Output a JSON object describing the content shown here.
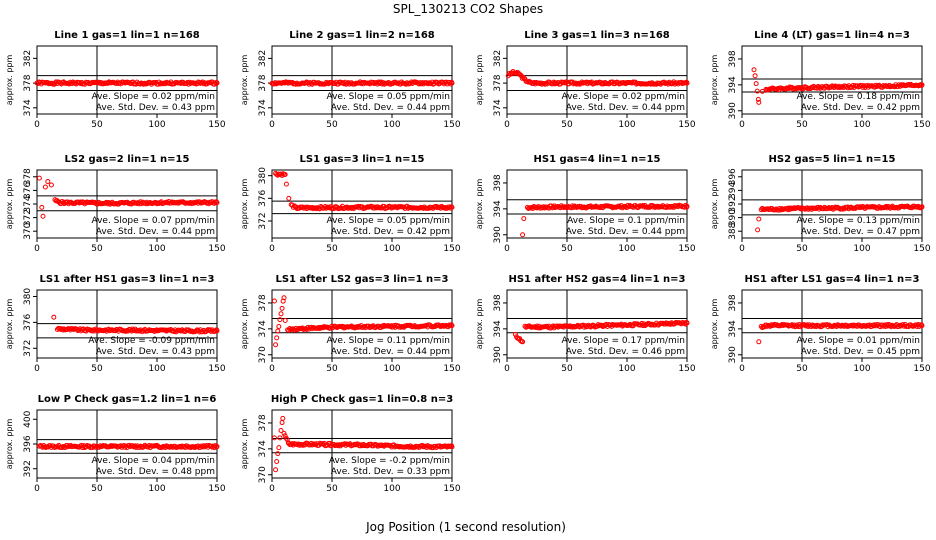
{
  "figure": {
    "title": "SPL_130213  CO2 Shapes",
    "xlabel": "Jog Position (1 second resolution)"
  },
  "chart_data": [
    {
      "type": "scatter",
      "title": "Line 1 gas=1 lin=1 n=168",
      "ylabel": "approx. ppm",
      "xlim": [
        0,
        150
      ],
      "ylim": [
        373,
        384
      ],
      "yticks": [
        374,
        378,
        382
      ],
      "xticks": [
        0,
        50,
        100,
        150
      ],
      "hlines": [
        379.2,
        376.8
      ],
      "vline": 50,
      "annotation": [
        "Ave. Slope = 0.02  ppm/min",
        "Ave. Std. Dev. = 0.43  ppm"
      ],
      "points": [
        [
          0,
          378.0
        ],
        [
          15,
          378.0
        ],
        [
          30,
          378.0
        ],
        [
          60,
          378.0
        ],
        [
          90,
          378.0
        ],
        [
          120,
          378.0
        ],
        [
          150,
          378.0
        ]
      ]
    },
    {
      "type": "scatter",
      "title": "Line 2 gas=1 lin=2 n=168",
      "ylabel": "approx. ppm",
      "xlim": [
        0,
        150
      ],
      "ylim": [
        373,
        384
      ],
      "yticks": [
        374,
        378,
        382
      ],
      "xticks": [
        0,
        50,
        100,
        150
      ],
      "hlines": [
        379.2,
        376.8
      ],
      "vline": 50,
      "annotation": [
        "Ave. Slope = 0.05  ppm/min",
        "Ave. Std. Dev. = 0.44  ppm"
      ],
      "points": [
        [
          0,
          378.0
        ],
        [
          30,
          378.0
        ],
        [
          60,
          378.0
        ],
        [
          90,
          378.0
        ],
        [
          120,
          378.0
        ],
        [
          150,
          378.0
        ]
      ]
    },
    {
      "type": "scatter",
      "title": "Line 3 gas=1 lin=3 n=168",
      "ylabel": "approx. ppm",
      "xlim": [
        0,
        150
      ],
      "ylim": [
        373,
        384
      ],
      "yticks": [
        374,
        378,
        382
      ],
      "xticks": [
        0,
        50,
        100,
        150
      ],
      "hlines": [
        379.2,
        376.8
      ],
      "vline": 50,
      "annotation": [
        "Ave. Slope = 0.02  ppm/min",
        "Ave. Std. Dev. = 0.44  ppm"
      ],
      "points": [
        [
          1,
          379.3
        ],
        [
          5,
          379.7
        ],
        [
          10,
          379.5
        ],
        [
          15,
          378.5
        ],
        [
          20,
          378.0
        ],
        [
          40,
          378.0
        ],
        [
          80,
          378.0
        ],
        [
          120,
          378.0
        ],
        [
          150,
          378.0
        ]
      ]
    },
    {
      "type": "scatter",
      "title": "Line 4 (LT) gas=1 lin=4 n=3",
      "ylabel": "approx. ppm",
      "xlim": [
        0,
        150
      ],
      "ylim": [
        389.5,
        400
      ],
      "yticks": [
        390,
        394,
        398
      ],
      "xticks": [
        0,
        50,
        100,
        150
      ],
      "hlines": [
        394.9,
        392.9
      ],
      "vline": 50,
      "annotation": [
        "Ave. Slope = 0.18  ppm/min",
        "Ave. Std. Dev. = 0.42  ppm"
      ],
      "points": [
        [
          10,
          396.5
        ],
        [
          14,
          391.3
        ],
        [
          17,
          393.0
        ],
        [
          20,
          393.3
        ],
        [
          40,
          393.5
        ],
        [
          80,
          393.7
        ],
        [
          120,
          393.8
        ],
        [
          150,
          394.0
        ]
      ]
    },
    {
      "type": "scatter",
      "title": "LS2 gas=2 lin=1 n=15",
      "ylabel": "approx. ppm",
      "xlim": [
        0,
        150
      ],
      "ylim": [
        369,
        379
      ],
      "yticks": [
        370,
        372,
        374,
        376,
        378
      ],
      "xticks": [
        0,
        50,
        100,
        150
      ],
      "hlines": [
        375.2,
        373.0
      ],
      "vline": 50,
      "annotation": [
        "Ave. Slope = 0.07  ppm/min",
        "Ave. Std. Dev. = 0.44  ppm"
      ],
      "points": [
        [
          2,
          377.8
        ],
        [
          4,
          373.5
        ],
        [
          5,
          372.2
        ],
        [
          7,
          376.5
        ],
        [
          9,
          377.3
        ],
        [
          12,
          376.8
        ],
        [
          15,
          374.5
        ],
        [
          20,
          374.2
        ],
        [
          60,
          374.1
        ],
        [
          100,
          374.2
        ],
        [
          150,
          374.2
        ]
      ]
    },
    {
      "type": "scatter",
      "title": "LS1 gas=3 lin=1 n=15",
      "ylabel": "approx. ppm",
      "xlim": [
        0,
        150
      ],
      "ylim": [
        369,
        381
      ],
      "yticks": [
        372,
        376,
        380
      ],
      "xticks": [
        0,
        50,
        100,
        150
      ],
      "hlines": [
        375.5,
        373.3
      ],
      "vline": 50,
      "annotation": [
        "Ave. Slope = 0.05  ppm/min",
        "Ave. Std. Dev. = 0.42  ppm"
      ],
      "points": [
        [
          3,
          380.3
        ],
        [
          11,
          380.2
        ],
        [
          12,
          378.5
        ],
        [
          14,
          376.0
        ],
        [
          16,
          374.8
        ],
        [
          20,
          374.3
        ],
        [
          60,
          374.4
        ],
        [
          100,
          374.4
        ],
        [
          150,
          374.4
        ]
      ]
    },
    {
      "type": "scatter",
      "title": "HS1 gas=4 lin=1 n=15",
      "ylabel": "approx. ppm",
      "xlim": [
        0,
        150
      ],
      "ylim": [
        389.5,
        400
      ],
      "yticks": [
        390,
        394,
        398
      ],
      "xticks": [
        0,
        50,
        100,
        150
      ],
      "hlines": [
        395.4,
        393.2
      ],
      "vline": 50,
      "annotation": [
        "Ave. Slope = 0.1  ppm/min",
        "Ave. Std. Dev. = 0.44  ppm"
      ],
      "points": [
        [
          13,
          390.0
        ],
        [
          14,
          392.5
        ],
        [
          17,
          394.2
        ],
        [
          40,
          394.3
        ],
        [
          80,
          394.3
        ],
        [
          120,
          394.4
        ],
        [
          150,
          394.4
        ]
      ]
    },
    {
      "type": "scatter",
      "title": "HS2 gas=5 lin=1 n=15",
      "ylabel": "approx. ppm",
      "xlim": [
        0,
        150
      ],
      "ylim": [
        387,
        397
      ],
      "yticks": [
        388,
        390,
        392,
        394,
        396
      ],
      "xticks": [
        0,
        50,
        100,
        150
      ],
      "hlines": [
        392.6,
        390.4
      ],
      "vline": 50,
      "annotation": [
        "Ave. Slope = 0.13  ppm/min",
        "Ave. Std. Dev. = 0.47  ppm"
      ],
      "points": [
        [
          13,
          388.2
        ],
        [
          14,
          389.8
        ],
        [
          16,
          391.2
        ],
        [
          40,
          391.3
        ],
        [
          80,
          391.4
        ],
        [
          120,
          391.5
        ],
        [
          150,
          391.6
        ]
      ]
    },
    {
      "type": "scatter",
      "title": "LS1 after HS1 gas=3 lin=1 n=3",
      "ylabel": "approx. ppm",
      "xlim": [
        0,
        150
      ],
      "ylim": [
        370.5,
        381
      ],
      "yticks": [
        372,
        376,
        380
      ],
      "xticks": [
        0,
        50,
        100,
        150
      ],
      "hlines": [
        375.8,
        373.6
      ],
      "vline": 50,
      "annotation": [
        "Ave. Slope = -0.09  ppm/min",
        "Ave. Std. Dev. = 0.43  ppm"
      ],
      "points": [
        [
          14,
          376.8
        ],
        [
          17,
          375.0
        ],
        [
          40,
          374.8
        ],
        [
          80,
          374.8
        ],
        [
          120,
          374.7
        ],
        [
          150,
          374.7
        ]
      ]
    },
    {
      "type": "scatter",
      "title": "LS1 after LS2 gas=3 lin=1 n=3",
      "ylabel": "approx. ppm",
      "xlim": [
        0,
        150
      ],
      "ylim": [
        369.5,
        380
      ],
      "yticks": [
        370,
        374,
        378
      ],
      "xticks": [
        0,
        50,
        100,
        150
      ],
      "hlines": [
        375.6,
        373.4
      ],
      "vline": 50,
      "annotation": [
        "Ave. Slope = 0.11  ppm/min",
        "Ave. Std. Dev. = 0.44  ppm"
      ],
      "points": [
        [
          2,
          378.3
        ],
        [
          3,
          371.7
        ],
        [
          10,
          378.8
        ],
        [
          11,
          375.3
        ],
        [
          13,
          373.9
        ],
        [
          20,
          374.0
        ],
        [
          60,
          374.3
        ],
        [
          100,
          374.4
        ],
        [
          150,
          374.5
        ]
      ]
    },
    {
      "type": "scatter",
      "title": "HS1 after HS2 gas=4 lin=1 n=3",
      "ylabel": "approx. ppm",
      "xlim": [
        0,
        150
      ],
      "ylim": [
        389.5,
        400
      ],
      "yticks": [
        390,
        394,
        398
      ],
      "xticks": [
        0,
        50,
        100,
        150
      ],
      "hlines": [
        395.6,
        393.4
      ],
      "vline": 50,
      "annotation": [
        "Ave. Slope = 0.17  ppm/min",
        "Ave. Std. Dev. = 0.46  ppm"
      ],
      "points": [
        [
          7,
          393.0
        ],
        [
          13,
          392.0
        ],
        [
          15,
          394.3
        ],
        [
          40,
          394.3
        ],
        [
          80,
          394.5
        ],
        [
          120,
          394.7
        ],
        [
          150,
          394.9
        ]
      ]
    },
    {
      "type": "scatter",
      "title": "HS1 after LS1 gas=4 lin=1 n=3",
      "ylabel": "approx. ppm",
      "xlim": [
        0,
        150
      ],
      "ylim": [
        389.5,
        400
      ],
      "yticks": [
        390,
        394,
        398
      ],
      "xticks": [
        0,
        50,
        100,
        150
      ],
      "hlines": [
        395.6,
        393.4
      ],
      "vline": 50,
      "annotation": [
        "Ave. Slope = 0.01  ppm/min",
        "Ave. Std. Dev. = 0.45  ppm"
      ],
      "points": [
        [
          14,
          392.0
        ],
        [
          16,
          394.3
        ],
        [
          20,
          394.5
        ],
        [
          60,
          394.5
        ],
        [
          100,
          394.5
        ],
        [
          150,
          394.5
        ]
      ]
    },
    {
      "type": "scatter",
      "title": "Low P Check gas=1.2 lin=1 n=6",
      "ylabel": "approx. ppm",
      "xlim": [
        0,
        150
      ],
      "ylim": [
        390.5,
        401.5
      ],
      "yticks": [
        392,
        396,
        400
      ],
      "xticks": [
        0,
        50,
        100,
        150
      ],
      "hlines": [
        396.7,
        394.5
      ],
      "vline": 50,
      "annotation": [
        "Ave. Slope = 0.04  ppm/min",
        "Ave. Std. Dev. = 0.48  ppm"
      ],
      "points": [
        [
          2,
          395.6
        ],
        [
          40,
          395.6
        ],
        [
          80,
          395.6
        ],
        [
          120,
          395.6
        ],
        [
          150,
          395.6
        ]
      ]
    },
    {
      "type": "scatter",
      "title": "High P Check gas=1 lin=0.8 n=3",
      "ylabel": "approx. ppm",
      "xlim": [
        0,
        150
      ],
      "ylim": [
        369.5,
        380
      ],
      "yticks": [
        370,
        374,
        378
      ],
      "xticks": [
        0,
        50,
        100,
        150
      ],
      "hlines": [
        375.6,
        373.4
      ],
      "vline": 50,
      "annotation": [
        "Ave. Slope = -0.2  ppm/min",
        "Ave. Std. Dev. = 0.33  ppm"
      ],
      "points": [
        [
          2,
          375.7
        ],
        [
          3,
          370.8
        ],
        [
          9,
          378.7
        ],
        [
          10,
          376.5
        ],
        [
          14,
          374.7
        ],
        [
          30,
          374.7
        ],
        [
          70,
          374.6
        ],
        [
          110,
          374.4
        ],
        [
          150,
          374.3
        ]
      ]
    }
  ]
}
